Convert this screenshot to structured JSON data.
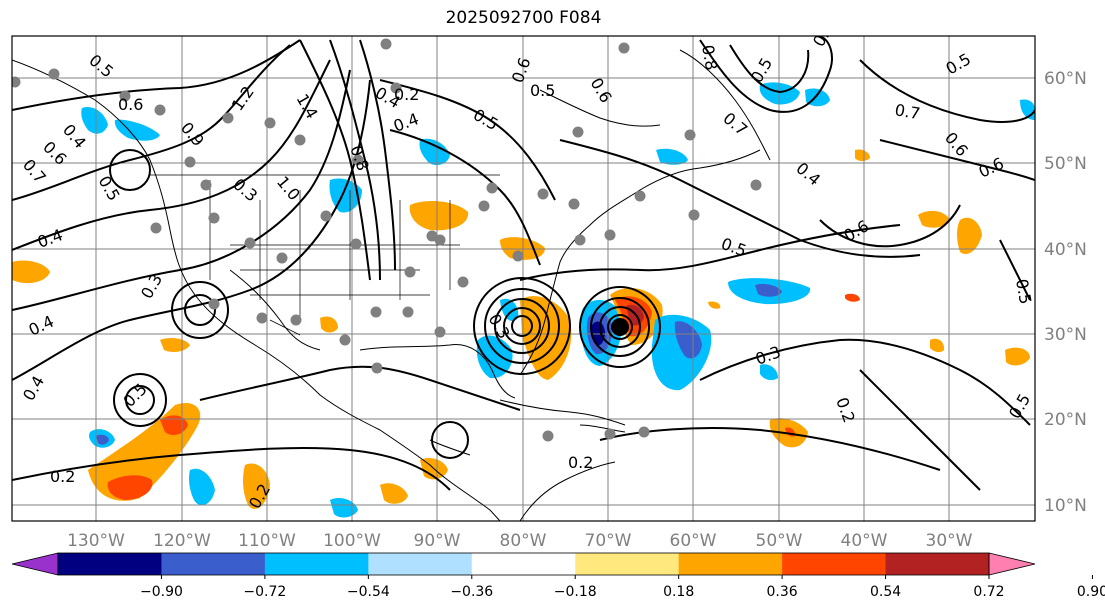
{
  "title": "2025092700 F084",
  "map": {
    "lon_range": [
      -140,
      -25
    ],
    "lat_range": [
      8,
      65
    ],
    "lon_ticks": [
      "130°W",
      "120°W",
      "110°W",
      "100°W",
      "90°W",
      "80°W",
      "70°W",
      "60°W",
      "50°W",
      "40°W",
      "30°W"
    ],
    "lat_ticks": [
      "60°N",
      "50°N",
      "40°N",
      "30°N",
      "20°N",
      "10°N"
    ],
    "grid": true
  },
  "colorbar": {
    "extend": "both",
    "tick_labels": [
      "−0.90",
      "−0.72",
      "−0.54",
      "−0.36",
      "−0.18",
      "0.18",
      "0.36",
      "0.54",
      "0.72",
      "0.90"
    ],
    "colors": [
      "#9932cc",
      "#000080",
      "#3a5fcd",
      "#00bfff",
      "#b0e0ff",
      "#ffffff",
      "#ffe97f",
      "#ffa500",
      "#ff4500",
      "#b22222",
      "#ff80b0"
    ]
  },
  "contour_labels": [
    "0.5",
    "0.6",
    "0.4",
    "0.6",
    "0.7",
    "0.5",
    "0.4",
    "0.3",
    "0.2",
    "0.4",
    "0.5",
    "0.4",
    "0.2",
    "1.2",
    "1.4",
    "0.9",
    "0.8",
    "0.3",
    "1.0",
    "0.4",
    "0.5",
    "0.6",
    "0.5",
    "0.4",
    "0.2",
    "0.8",
    "0.7",
    "0.5",
    "0.7",
    "0.6",
    "0.4",
    "0.6",
    "0.5",
    "0.6",
    "0.5",
    "0.5",
    "0.3",
    "0.2",
    "0.5",
    "0.2",
    "0.3",
    "0.6",
    "0.4"
  ]
}
